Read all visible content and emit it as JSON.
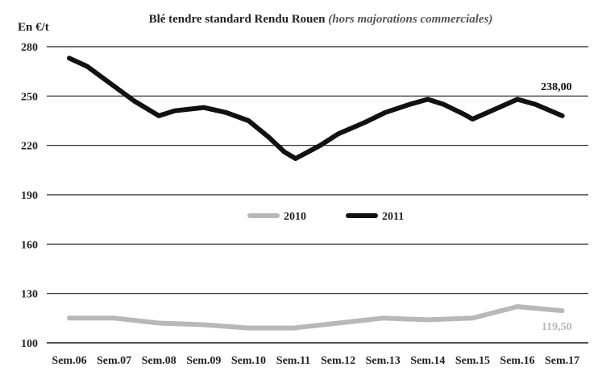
{
  "chart_data": {
    "type": "line",
    "title": "Blé tendre standard Rendu Rouen",
    "subtitle": "(hors majorations commerciales)",
    "ylabel": "En €/t",
    "xlabel": "",
    "ylim": [
      100,
      280
    ],
    "yticks": [
      100,
      130,
      160,
      190,
      220,
      250,
      280
    ],
    "grid": true,
    "legend_position": "center",
    "categories": [
      "Sem.06",
      "Sem.07",
      "Sem.08",
      "Sem.09",
      "Sem.10",
      "Sem.11",
      "Sem.12",
      "Sem.13",
      "Sem.14",
      "Sem.15",
      "Sem.16",
      "Sem.17"
    ],
    "series": [
      {
        "name": "2010",
        "color": "#b8b8b8",
        "x": [
          0,
          1,
          2,
          3,
          4,
          5,
          6,
          7,
          8,
          9,
          10,
          11
        ],
        "values": [
          115,
          115,
          112,
          111,
          109,
          109,
          112,
          115,
          114,
          115,
          122,
          119.5
        ],
        "end_label": "119,50"
      },
      {
        "name": "2011",
        "color": "#111111",
        "x": [
          0,
          0.4,
          0.9,
          1.45,
          2,
          2.35,
          3,
          3.5,
          4,
          4.45,
          4.8,
          5.05,
          5.6,
          6,
          6.6,
          7.05,
          7.6,
          8,
          8.35,
          8.8,
          9,
          9.5,
          10,
          10.4,
          11
        ],
        "values": [
          273,
          268,
          258,
          247,
          238,
          241,
          243,
          240,
          235,
          225,
          216,
          212,
          220,
          227,
          234,
          240,
          245,
          248,
          245,
          239,
          236,
          242,
          248,
          245,
          238
        ],
        "end_label": "238,00"
      }
    ]
  }
}
